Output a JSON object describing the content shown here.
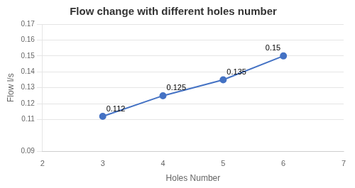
{
  "chart_data": {
    "type": "line",
    "title": "Flow change with different holes number",
    "xlabel": "Holes Number",
    "ylabel": "Flow l/s",
    "x": [
      3,
      4,
      5,
      6
    ],
    "values": [
      0.112,
      0.125,
      0.135,
      0.15
    ],
    "color": "#4472C4",
    "marker": "o",
    "xlim": [
      2,
      7
    ],
    "xticks": [
      2,
      3,
      4,
      5,
      6,
      7
    ],
    "ylim": [
      0.09,
      0.17
    ],
    "yticks": [
      0.09,
      0.11,
      0.12,
      0.13,
      0.14,
      0.15,
      0.16,
      0.17
    ],
    "grid": "y",
    "data_labels": true
  }
}
